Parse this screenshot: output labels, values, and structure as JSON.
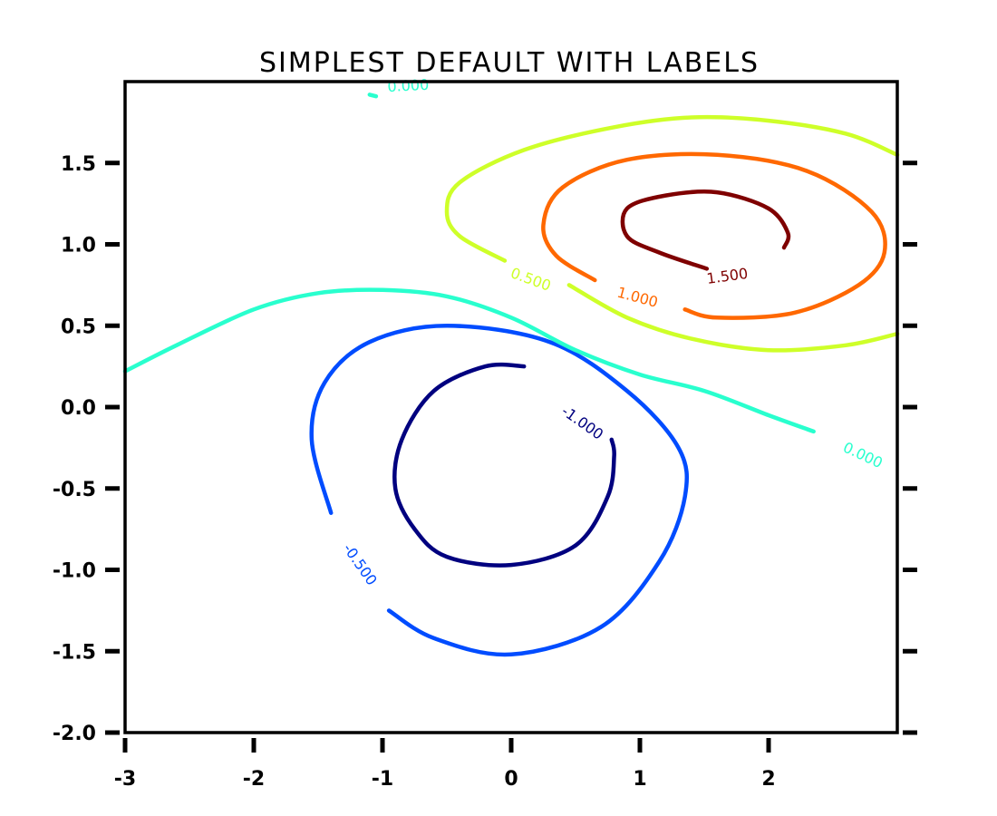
{
  "chart_data": {
    "type": "contour",
    "title": "SIMPLEST DEFAULT WITH LABELS",
    "xlabel": "",
    "ylabel": "",
    "xlim": [
      -3,
      3
    ],
    "ylim": [
      -2,
      2
    ],
    "grid": false,
    "x_ticks": [
      "-3",
      "-2",
      "-1",
      "0",
      "1",
      "2"
    ],
    "y_ticks": [
      "-2.0",
      "-1.5",
      "-1.0",
      "-0.5",
      "0.0",
      "0.5",
      "1.0",
      "1.5"
    ],
    "contours": [
      {
        "level": "-1.000",
        "color": "#00007f",
        "label_pos": [
          0.55,
          -0.1
        ],
        "label_angle": 35,
        "points": [
          [
            0.1,
            0.25
          ],
          [
            -0.2,
            0.25
          ],
          [
            -0.6,
            0.1
          ],
          [
            -0.85,
            -0.2
          ],
          [
            -0.9,
            -0.5
          ],
          [
            -0.75,
            -0.75
          ],
          [
            -0.5,
            -0.92
          ],
          [
            0,
            -0.97
          ],
          [
            0.5,
            -0.85
          ],
          [
            0.75,
            -0.55
          ],
          [
            0.8,
            -0.3
          ],
          [
            0.78,
            -0.2
          ]
        ]
      },
      {
        "level": "-0.500",
        "color": "#004cff",
        "label_pos": [
          -1.18,
          -0.97
        ],
        "label_angle": 55,
        "points": [
          [
            -1.4,
            -0.65
          ],
          [
            -1.55,
            -0.2
          ],
          [
            -1.45,
            0.15
          ],
          [
            -1.1,
            0.4
          ],
          [
            -0.5,
            0.5
          ],
          [
            0.3,
            0.4
          ],
          [
            0.9,
            0.1
          ],
          [
            1.3,
            -0.25
          ],
          [
            1.35,
            -0.55
          ],
          [
            1.15,
            -0.95
          ],
          [
            0.7,
            -1.35
          ],
          [
            0,
            -1.52
          ],
          [
            -0.6,
            -1.42
          ],
          [
            -0.95,
            -1.25
          ]
        ]
      },
      {
        "level": "0.000",
        "color": "#29ffce",
        "label_pos": [
          2.73,
          -0.3
        ],
        "label_angle": 25,
        "points": [
          [
            -3,
            0.22
          ],
          [
            -2.6,
            0.38
          ],
          [
            -2.0,
            0.6
          ],
          [
            -1.5,
            0.7
          ],
          [
            -1.0,
            0.72
          ],
          [
            -0.5,
            0.68
          ],
          [
            0,
            0.55
          ],
          [
            0.5,
            0.35
          ],
          [
            1.0,
            0.2
          ],
          [
            1.5,
            0.1
          ],
          [
            2.0,
            -0.05
          ],
          [
            2.35,
            -0.15
          ]
        ]
      },
      {
        "level": "0.000",
        "color": "#29ffce",
        "label_pos": [
          -0.8,
          1.97
        ],
        "label_angle": -3,
        "points": [
          [
            -1.1,
            1.92
          ],
          [
            -1.05,
            1.91
          ]
        ]
      },
      {
        "level": "0.500",
        "color": "#ceff29",
        "label_pos": [
          0.15,
          0.78
        ],
        "label_angle": 20,
        "points": [
          [
            -0.05,
            0.9
          ],
          [
            -0.4,
            1.05
          ],
          [
            -0.5,
            1.2
          ],
          [
            -0.4,
            1.38
          ],
          [
            0.1,
            1.58
          ],
          [
            0.8,
            1.72
          ],
          [
            1.4,
            1.78
          ],
          [
            2.0,
            1.76
          ],
          [
            2.6,
            1.68
          ],
          [
            3,
            1.55
          ]
        ]
      },
      {
        "level": "0.500",
        "color": "#ceff29",
        "label_pos": [
          0.15,
          0.78
        ],
        "label_angle": 20,
        "points": [
          [
            0.45,
            0.75
          ],
          [
            0.9,
            0.55
          ],
          [
            1.4,
            0.42
          ],
          [
            2.0,
            0.35
          ],
          [
            2.6,
            0.38
          ],
          [
            3,
            0.45
          ]
        ]
      },
      {
        "level": "1.000",
        "color": "#ff6800",
        "label_pos": [
          0.98,
          0.67
        ],
        "label_angle": 15,
        "points": [
          [
            0.65,
            0.78
          ],
          [
            0.35,
            0.93
          ],
          [
            0.25,
            1.12
          ],
          [
            0.4,
            1.35
          ],
          [
            0.9,
            1.52
          ],
          [
            1.6,
            1.55
          ],
          [
            2.3,
            1.45
          ],
          [
            2.8,
            1.2
          ],
          [
            2.9,
            0.95
          ],
          [
            2.7,
            0.75
          ],
          [
            2.2,
            0.58
          ],
          [
            1.6,
            0.55
          ],
          [
            1.35,
            0.6
          ]
        ]
      },
      {
        "level": "1.500",
        "color": "#7f0000",
        "label_pos": [
          1.68,
          0.8
        ],
        "label_angle": -8,
        "points": [
          [
            1.52,
            0.85
          ],
          [
            1.15,
            0.95
          ],
          [
            0.9,
            1.05
          ],
          [
            0.9,
            1.22
          ],
          [
            1.2,
            1.3
          ],
          [
            1.6,
            1.32
          ],
          [
            2.0,
            1.22
          ],
          [
            2.15,
            1.07
          ],
          [
            2.12,
            0.98
          ]
        ]
      }
    ]
  }
}
